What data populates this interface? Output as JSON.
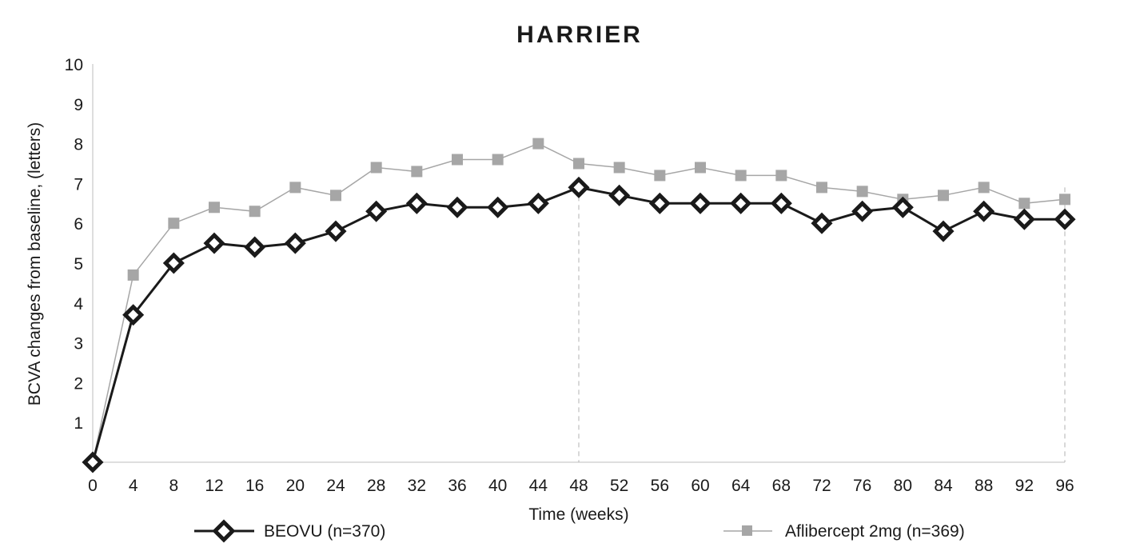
{
  "chart_data": {
    "type": "line",
    "title": "HARRIER",
    "xlabel": "Time (weeks)",
    "ylabel": "BCVA changes from baseline, (letters)",
    "x": [
      0,
      4,
      8,
      12,
      16,
      20,
      24,
      28,
      32,
      36,
      40,
      44,
      48,
      52,
      56,
      60,
      64,
      68,
      72,
      76,
      80,
      84,
      88,
      92,
      96
    ],
    "xlim": [
      0,
      96
    ],
    "ylim": [
      0,
      10
    ],
    "x_ticks": [
      "0",
      "4",
      "8",
      "12",
      "16",
      "20",
      "24",
      "28",
      "32",
      "36",
      "40",
      "44",
      "48",
      "52",
      "56",
      "60",
      "64",
      "68",
      "72",
      "76",
      "80",
      "84",
      "88",
      "92",
      "96"
    ],
    "y_ticks": [
      "1",
      "2",
      "3",
      "4",
      "5",
      "6",
      "7",
      "8",
      "9",
      "10"
    ],
    "grid": false,
    "legend_position": "bottom",
    "reference_lines_x": [
      48,
      96
    ],
    "series": [
      {
        "name": "BEOVU (n=370)",
        "color": "#1a1a1a",
        "marker": "diamond",
        "values": [
          0,
          3.7,
          5.0,
          5.5,
          5.4,
          5.5,
          5.8,
          6.3,
          6.5,
          6.4,
          6.4,
          6.5,
          6.9,
          6.7,
          6.5,
          6.5,
          6.5,
          6.5,
          6.0,
          6.3,
          6.4,
          5.8,
          6.3,
          6.1,
          6.1
        ]
      },
      {
        "name": "Aflibercept 2mg (n=369)",
        "color": "#a6a6a6",
        "marker": "square",
        "values": [
          0,
          4.7,
          6.0,
          6.4,
          6.3,
          6.9,
          6.7,
          7.4,
          7.3,
          7.6,
          7.6,
          8.0,
          7.5,
          7.4,
          7.2,
          7.4,
          7.2,
          7.2,
          6.9,
          6.8,
          6.6,
          6.7,
          6.9,
          6.5,
          6.6
        ]
      }
    ]
  }
}
